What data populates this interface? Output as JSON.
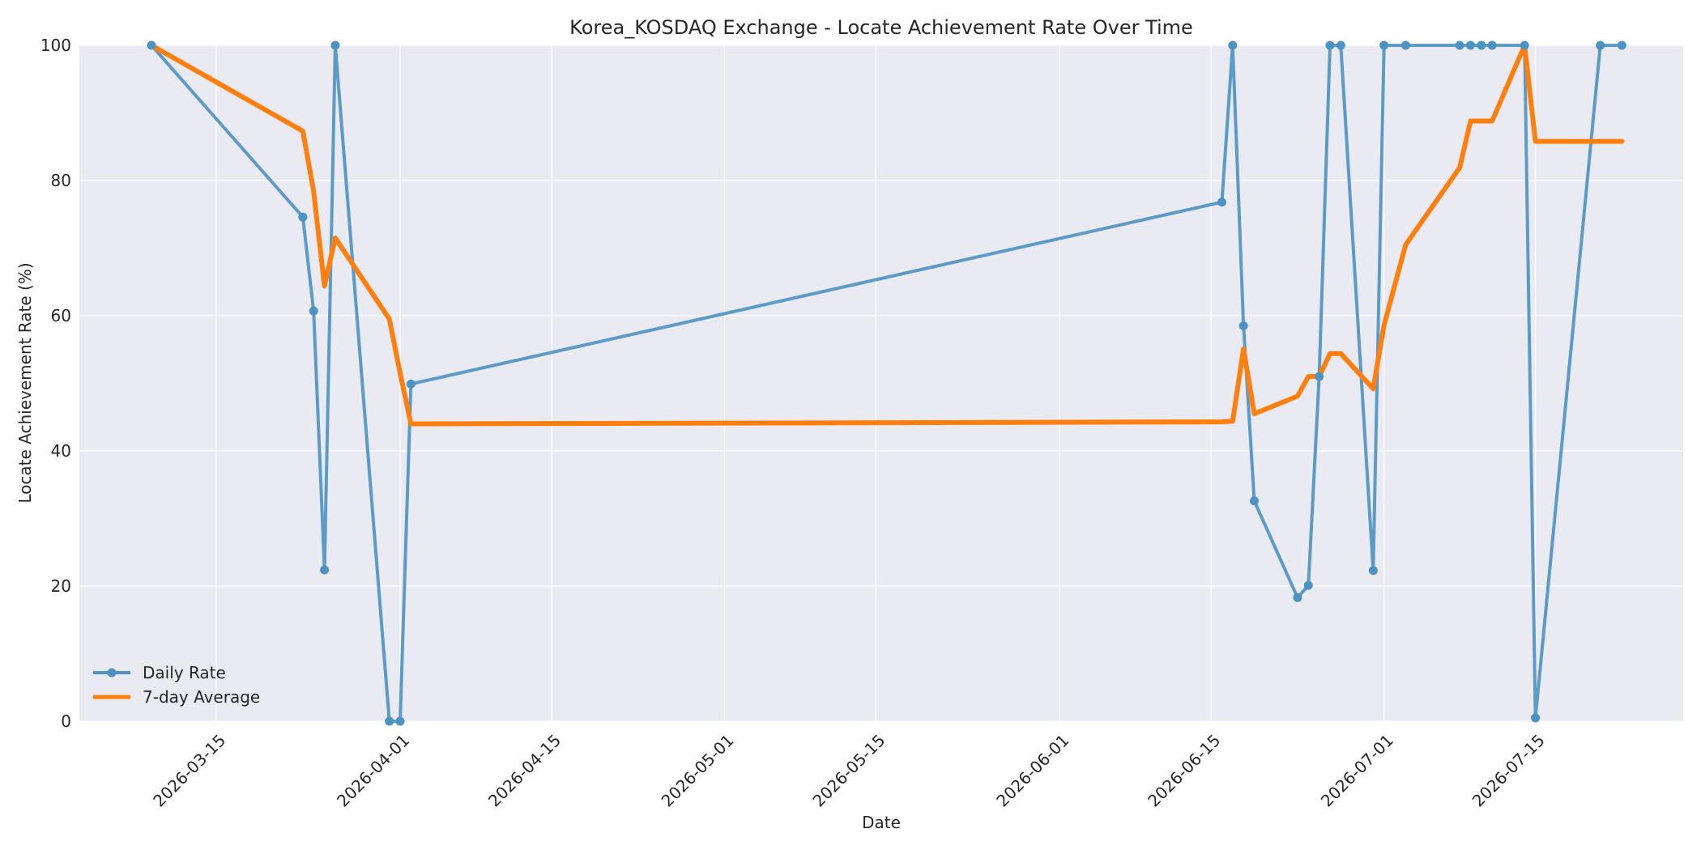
{
  "chart_data": {
    "type": "line",
    "title": "Korea_KOSDAQ Exchange - Locate Achievement Rate Over Time",
    "xlabel": "Date",
    "ylabel": "Locate Achievement Rate (%)",
    "xlim": [
      "2026-03-02T08:00",
      "2026-07-28T16:00"
    ],
    "ylim": [
      0,
      100
    ],
    "x_ticks": [
      "2026-03-15",
      "2026-04-01",
      "2026-04-15",
      "2026-05-01",
      "2026-05-15",
      "2026-06-01",
      "2026-06-15",
      "2026-07-01",
      "2026-07-15"
    ],
    "y_ticks": [
      0,
      20,
      40,
      60,
      80,
      100
    ],
    "grid": true,
    "legend_position": "lower-left",
    "colors": {
      "plot_bg": "#eaeaf2",
      "grid": "#ffffff",
      "daily": "#4c92c3",
      "average": "#ff7f0e"
    },
    "series": [
      {
        "name": "Daily Rate",
        "style": "line-with-markers",
        "x": [
          "2026-03-09",
          "2026-03-23",
          "2026-03-24",
          "2026-03-25",
          "2026-03-26",
          "2026-03-31",
          "2026-04-01",
          "2026-04-02",
          "2026-06-16",
          "2026-06-17",
          "2026-06-18",
          "2026-06-19",
          "2026-06-23",
          "2026-06-24",
          "2026-06-25",
          "2026-06-26",
          "2026-06-27",
          "2026-06-30",
          "2026-07-01",
          "2026-07-03",
          "2026-07-08",
          "2026-07-09",
          "2026-07-10",
          "2026-07-11",
          "2026-07-14",
          "2026-07-15",
          "2026-07-21",
          "2026-07-23"
        ],
        "values": [
          100,
          74.6,
          60.7,
          22.4,
          100,
          0,
          0,
          49.9,
          76.8,
          100,
          58.5,
          32.6,
          18.3,
          20.1,
          51.0,
          100,
          100,
          22.3,
          100,
          100,
          100,
          100,
          100,
          100,
          100,
          0.5,
          100,
          100
        ]
      },
      {
        "name": "7-day Average",
        "style": "line",
        "x": [
          "2026-03-09",
          "2026-03-23",
          "2026-03-24",
          "2026-03-25",
          "2026-03-26",
          "2026-03-31",
          "2026-04-01",
          "2026-04-02",
          "2026-06-16",
          "2026-06-17",
          "2026-06-18",
          "2026-06-19",
          "2026-06-23",
          "2026-06-24",
          "2026-06-25",
          "2026-06-26",
          "2026-06-27",
          "2026-06-30",
          "2026-07-01",
          "2026-07-03",
          "2026-07-08",
          "2026-07-09",
          "2026-07-10",
          "2026-07-11",
          "2026-07-14",
          "2026-07-15",
          "2026-07-21",
          "2026-07-23"
        ],
        "values": [
          100,
          87.3,
          78.4,
          64.4,
          71.5,
          59.5,
          51.5,
          44.0,
          44.3,
          44.4,
          55.1,
          45.5,
          48.1,
          51.0,
          51.0,
          54.4,
          54.4,
          49.2,
          58.6,
          70.5,
          81.9,
          88.8,
          88.8,
          88.8,
          100,
          85.8,
          85.8,
          85.8
        ]
      }
    ]
  }
}
